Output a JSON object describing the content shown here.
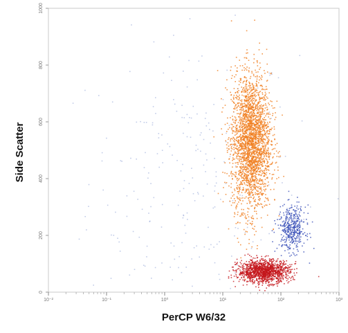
{
  "chart_data": {
    "type": "scatter",
    "xlabel": "PerCP W6/32",
    "ylabel": "Side Scatter",
    "x_scale": "log",
    "xlim": [
      0.01,
      1000
    ],
    "ylim": [
      0,
      1000
    ],
    "y_ticks": [
      0,
      200,
      400,
      600,
      800,
      1000
    ],
    "x_tick_labels": [
      "10⁻²",
      "10⁻¹",
      "10⁰",
      "10¹",
      "10²",
      "10³"
    ],
    "grid": false,
    "legend": "none",
    "series": [
      {
        "color": "#f07d1e",
        "center": [
          30,
          530
        ],
        "spread_log10_x": 0.17,
        "spread_y": 120,
        "count": 2600
      },
      {
        "color": "#3a50b8",
        "center": [
          150,
          225
        ],
        "spread_log10_x": 0.12,
        "spread_y": 40,
        "count": 420
      },
      {
        "color": "#c4161c",
        "center": [
          50,
          75
        ],
        "spread_log10_x": 0.22,
        "spread_y": 20,
        "count": 1300
      },
      {
        "color": "#8fa3d6",
        "center": [
          3,
          400
        ],
        "spread_log10_x": 0.9,
        "spread_y": 250,
        "count": 260
      }
    ]
  }
}
